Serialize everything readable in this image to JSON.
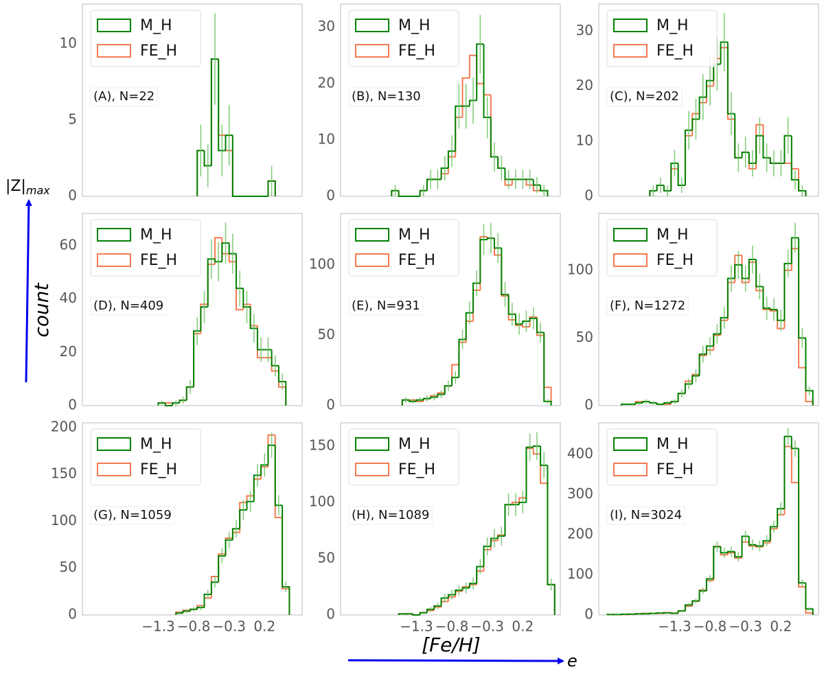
{
  "xlabel": "[Fe/H]",
  "ylabel": "count",
  "arrows": {
    "vertical_label": "|Z|",
    "vertical_subscript": "max",
    "horizontal_label": "e",
    "color": "#0000ee"
  },
  "chart_data": [
    {
      "type": "histogram",
      "annotation": "(A), N=22",
      "xlim": [
        -2.37,
        0.73
      ],
      "ylim": [
        0,
        12.6
      ],
      "yticks": [
        0,
        5,
        10
      ],
      "bins": [
        -0.75,
        -0.65,
        -0.55,
        -0.45,
        -0.35,
        -0.25,
        -0.15,
        -0.05,
        0.05,
        0.15,
        0.25,
        0.35
      ],
      "series": [
        {
          "name": "M_H",
          "color": "#008000",
          "error_color": "#6abf5e",
          "values": [
            3,
            2,
            9,
            3,
            4,
            0,
            0,
            0,
            0,
            0,
            1
          ],
          "errors": [
            1.7,
            1.4,
            3,
            1.7,
            2,
            0,
            0,
            0,
            0,
            0,
            1
          ]
        },
        {
          "name": "FE_H",
          "color": "#f47a50",
          "values": [
            3,
            2,
            9,
            4,
            3,
            0,
            0,
            0,
            0,
            0,
            1
          ]
        }
      ]
    },
    {
      "type": "histogram",
      "annotation": "(B), N=130",
      "xlim": [
        -2.37,
        0.73
      ],
      "ylim": [
        0,
        34.1
      ],
      "yticks": [
        0,
        10,
        20,
        30
      ],
      "bins": [
        -1.65,
        -1.55,
        -1.45,
        -1.35,
        -1.25,
        -1.15,
        -1.05,
        -0.95,
        -0.85,
        -0.75,
        -0.65,
        -0.55,
        -0.45,
        -0.35,
        -0.25,
        -0.15,
        -0.05,
        0.05,
        0.15,
        0.25,
        0.35,
        0.45,
        0.55
      ],
      "series": [
        {
          "name": "M_H",
          "color": "#008000",
          "error_color": "#6abf5e",
          "values": [
            1,
            0,
            0,
            0,
            1,
            3,
            3,
            5,
            8,
            16,
            16,
            17,
            27,
            14,
            7,
            5,
            3,
            3,
            3,
            3,
            2,
            1
          ],
          "errors": [
            1,
            0,
            0,
            0,
            1,
            1.7,
            1.7,
            2.2,
            2.8,
            4,
            4,
            4.1,
            5.2,
            3.7,
            2.6,
            2.2,
            1.7,
            1.7,
            1.7,
            1.7,
            1.4,
            1
          ]
        },
        {
          "name": "FE_H",
          "color": "#f47a50",
          "values": [
            1,
            0,
            0,
            0,
            1,
            3,
            3,
            4,
            7,
            14,
            21,
            25,
            20,
            18,
            7,
            5,
            2,
            3,
            3,
            2,
            1,
            1
          ]
        }
      ]
    },
    {
      "type": "histogram",
      "annotation": "(C), N=202",
      "xlim": [
        -2.37,
        0.73
      ],
      "ylim": [
        0,
        34.9
      ],
      "yticks": [
        0,
        10,
        20,
        30
      ],
      "bins": [
        -1.65,
        -1.55,
        -1.45,
        -1.35,
        -1.25,
        -1.15,
        -1.05,
        -0.95,
        -0.85,
        -0.75,
        -0.65,
        -0.55,
        -0.45,
        -0.35,
        -0.25,
        -0.15,
        -0.05,
        0.05,
        0.15,
        0.25,
        0.35,
        0.45,
        0.55
      ],
      "series": [
        {
          "name": "M_H",
          "color": "#008000",
          "error_color": "#6abf5e",
          "values": [
            1,
            2,
            1,
            6,
            2,
            12,
            14,
            18,
            21,
            24,
            28,
            15,
            7,
            8,
            6,
            11,
            7,
            6,
            6,
            11,
            3,
            1
          ],
          "errors": [
            1,
            1.4,
            1,
            2.4,
            1.4,
            3.5,
            3.7,
            4.2,
            4.6,
            4.9,
            5.3,
            3.9,
            2.6,
            2.8,
            2.4,
            3.3,
            2.6,
            2.4,
            2.4,
            3.3,
            1.7,
            1
          ]
        },
        {
          "name": "FE_H",
          "color": "#f47a50",
          "values": [
            1,
            2,
            1,
            5,
            2,
            11,
            15,
            17,
            20,
            25,
            27,
            14,
            7,
            8,
            5,
            13,
            7,
            6,
            6,
            6,
            5,
            1
          ]
        }
      ]
    },
    {
      "type": "histogram",
      "annotation": "(D), N=409",
      "xlim": [
        -2.37,
        0.73
      ],
      "ylim": [
        0,
        72.1
      ],
      "yticks": [
        0,
        20,
        40,
        60
      ],
      "bins": [
        -1.3,
        -1.2,
        -1.1,
        -1.0,
        -0.9,
        -0.8,
        -0.7,
        -0.6,
        -0.5,
        -0.4,
        -0.3,
        -0.2,
        -0.1,
        0.0,
        0.1,
        0.2,
        0.3,
        0.4,
        0.5
      ],
      "series": [
        {
          "name": "M_H",
          "color": "#008000",
          "error_color": "#6abf5e",
          "values": [
            1,
            0,
            1,
            2,
            7,
            28,
            37,
            55,
            54,
            61,
            57,
            44,
            37,
            29,
            21,
            21,
            15,
            9
          ],
          "errors": [
            1,
            0,
            1,
            1.4,
            2.6,
            5.3,
            6.1,
            7.4,
            7.3,
            7.8,
            7.5,
            6.6,
            6.1,
            5.4,
            4.6,
            4.6,
            3.9,
            3
          ]
        },
        {
          "name": "FE_H",
          "color": "#f47a50",
          "values": [
            1,
            1,
            1,
            2,
            7,
            27,
            38,
            53,
            63,
            57,
            54,
            36,
            38,
            30,
            18,
            18,
            13,
            7
          ]
        }
      ]
    },
    {
      "type": "histogram",
      "annotation": "(E), N=931",
      "xlim": [
        -2.37,
        0.73
      ],
      "ylim": [
        0,
        136.6
      ],
      "yticks": [
        0,
        50,
        100
      ],
      "bins": [
        -1.5,
        -1.4,
        -1.3,
        -1.2,
        -1.1,
        -1.0,
        -0.9,
        -0.8,
        -0.7,
        -0.6,
        -0.5,
        -0.4,
        -0.3,
        -0.2,
        -0.1,
        0.0,
        0.1,
        0.2,
        0.3,
        0.4,
        0.5,
        0.6
      ],
      "series": [
        {
          "name": "M_H",
          "color": "#008000",
          "error_color": "#6abf5e",
          "values": [
            4,
            3,
            4,
            5,
            6,
            8,
            14,
            20,
            47,
            66,
            87,
            118,
            119,
            112,
            79,
            65,
            58,
            60,
            62,
            52,
            3
          ],
          "errors": [
            2,
            1.7,
            2,
            2.2,
            2.4,
            2.8,
            3.7,
            4.5,
            6.9,
            8.1,
            9.3,
            10.9,
            10.9,
            10.6,
            8.9,
            8.1,
            7.6,
            7.7,
            7.9,
            7.2,
            1.7
          ]
        },
        {
          "name": "FE_H",
          "color": "#f47a50",
          "values": [
            4,
            4,
            3,
            5,
            7,
            9,
            14,
            29,
            45,
            60,
            82,
            120,
            119,
            107,
            78,
            61,
            57,
            56,
            63,
            50,
            13
          ]
        }
      ]
    },
    {
      "type": "histogram",
      "annotation": "(F), N=1272",
      "xlim": [
        -2.37,
        0.73
      ],
      "ylim": [
        0,
        142
      ],
      "yticks": [
        0,
        50,
        100
      ],
      "bins": [
        -2.05,
        -1.95,
        -1.85,
        -1.75,
        -1.65,
        -1.55,
        -1.45,
        -1.35,
        -1.25,
        -1.15,
        -1.05,
        -0.95,
        -0.85,
        -0.75,
        -0.65,
        -0.55,
        -0.45,
        -0.35,
        -0.25,
        -0.15,
        -0.05,
        0.05,
        0.15,
        0.25,
        0.35,
        0.45,
        0.55,
        0.65
      ],
      "series": [
        {
          "name": "M_H",
          "color": "#008000",
          "error_color": "#6abf5e",
          "values": [
            1,
            1,
            2,
            3,
            2,
            1,
            2,
            3,
            9,
            16,
            22,
            38,
            44,
            53,
            65,
            94,
            104,
            94,
            108,
            88,
            72,
            71,
            63,
            105,
            124,
            50,
            11
          ],
          "errors": [
            1,
            1,
            1.4,
            1.7,
            1.4,
            1,
            1.4,
            1.7,
            3,
            4,
            4.7,
            6.2,
            6.6,
            7.3,
            8.1,
            9.7,
            10.2,
            9.7,
            10.4,
            9.4,
            8.5,
            8.4,
            7.9,
            10.2,
            11.1,
            7.1,
            3.3
          ]
        },
        {
          "name": "FE_H",
          "color": "#f47a50",
          "values": [
            1,
            1,
            3,
            3,
            2,
            1,
            1,
            3,
            9,
            18,
            23,
            37,
            41,
            52,
            63,
            91,
            111,
            91,
            106,
            85,
            71,
            70,
            57,
            100,
            116,
            28,
            3
          ]
        }
      ]
    },
    {
      "type": "histogram",
      "annotation": "(G), N=1059",
      "xlim": [
        -2.37,
        0.73
      ],
      "ylim": [
        0,
        205
      ],
      "yticks": [
        0,
        50,
        100,
        150,
        200
      ],
      "xticks": [
        {
          "value": -1.3,
          "label": "−1.3"
        },
        {
          "value": -0.8,
          "label": "−0.8"
        },
        {
          "value": -0.3,
          "label": "−0.3"
        },
        0.2
      ],
      "bins": [
        -1.05,
        -0.95,
        -0.85,
        -0.75,
        -0.65,
        -0.55,
        -0.45,
        -0.35,
        -0.25,
        -0.15,
        -0.05,
        0.05,
        0.15,
        0.25,
        0.35,
        0.45,
        0.55
      ],
      "series": [
        {
          "name": "M_H",
          "color": "#008000",
          "error_color": "#6abf5e",
          "values": [
            2,
            4,
            6,
            8,
            22,
            35,
            63,
            80,
            92,
            112,
            121,
            149,
            160,
            181,
            117,
            30
          ],
          "errors": [
            1.4,
            2,
            2.4,
            2.8,
            4.7,
            5.9,
            7.9,
            8.9,
            9.6,
            10.6,
            11,
            12.2,
            12.6,
            13.5,
            10.8,
            5.5
          ]
        },
        {
          "name": "FE_H",
          "color": "#f47a50",
          "values": [
            3,
            5,
            6,
            10,
            18,
            41,
            65,
            82,
            88,
            120,
            127,
            145,
            158,
            192,
            104,
            28
          ]
        }
      ]
    },
    {
      "type": "histogram",
      "annotation": "(H), N=1089",
      "xlim": [
        -2.37,
        0.73
      ],
      "ylim": [
        0,
        170.7
      ],
      "yticks": [
        0,
        50,
        100,
        150
      ],
      "xticks": [
        {
          "value": -1.3,
          "label": "−1.3"
        },
        {
          "value": -0.8,
          "label": "−0.8"
        },
        {
          "value": -0.3,
          "label": "−0.3"
        },
        0.2
      ],
      "bins": [
        -1.55,
        -1.45,
        -1.35,
        -1.25,
        -1.15,
        -1.05,
        -0.95,
        -0.85,
        -0.75,
        -0.65,
        -0.55,
        -0.45,
        -0.35,
        -0.25,
        -0.15,
        -0.05,
        0.05,
        0.15,
        0.25,
        0.35,
        0.45,
        0.55,
        0.65
      ],
      "series": [
        {
          "name": "M_H",
          "color": "#008000",
          "error_color": "#6abf5e",
          "values": [
            1,
            1,
            0,
            2,
            5,
            8,
            15,
            18,
            22,
            24,
            28,
            43,
            61,
            68,
            70,
            98,
            98,
            100,
            149,
            150,
            133,
            27
          ],
          "errors": [
            1,
            1,
            0,
            1.4,
            2.2,
            2.8,
            3.9,
            4.2,
            4.7,
            4.9,
            5.3,
            6.6,
            7.8,
            8.2,
            8.4,
            9.9,
            9.9,
            10,
            12.2,
            12.2,
            11.5,
            5.2
          ]
        },
        {
          "name": "FE_H",
          "color": "#f47a50",
          "values": [
            1,
            1,
            0,
            2,
            4,
            7,
            12,
            16,
            21,
            25,
            27,
            39,
            58,
            66,
            71,
            98,
            100,
            104,
            148,
            143,
            117,
            27
          ]
        }
      ]
    },
    {
      "type": "histogram",
      "annotation": "(I), N=3024",
      "xlim": [
        -2.37,
        0.73
      ],
      "ylim": [
        0,
        479
      ],
      "yticks": [
        0,
        100,
        200,
        300,
        400
      ],
      "xticks": [
        {
          "value": -1.3,
          "label": "−1.3"
        },
        {
          "value": -0.8,
          "label": "−0.8"
        },
        {
          "value": -0.3,
          "label": "−0.3"
        },
        0.2
      ],
      "bins": [
        -2.25,
        -2.15,
        -2.05,
        -1.95,
        -1.85,
        -1.75,
        -1.65,
        -1.55,
        -1.45,
        -1.35,
        -1.25,
        -1.15,
        -1.05,
        -0.95,
        -0.85,
        -0.75,
        -0.65,
        -0.55,
        -0.45,
        -0.35,
        -0.25,
        -0.15,
        -0.05,
        0.05,
        0.15,
        0.25,
        0.35,
        0.45,
        0.55,
        0.65
      ],
      "series": [
        {
          "name": "M_H",
          "color": "#008000",
          "error_color": "#6abf5e",
          "values": [
            1,
            1,
            2,
            2,
            3,
            3,
            4,
            5,
            5,
            4,
            10,
            25,
            35,
            60,
            90,
            170,
            155,
            158,
            145,
            196,
            175,
            172,
            185,
            220,
            265,
            445,
            415,
            80,
            15
          ],
          "errors": [
            1,
            1,
            1.4,
            1.4,
            1.7,
            1.7,
            2,
            2.2,
            2.2,
            2,
            3.2,
            5,
            5.9,
            7.7,
            9.5,
            13,
            12.4,
            12.6,
            12,
            14,
            13.2,
            13.1,
            13.6,
            14.8,
            16.3,
            21.1,
            20.4,
            8.9,
            3.9
          ]
        },
        {
          "name": "FE_H",
          "color": "#f47a50",
          "values": [
            1,
            1,
            1,
            2,
            3,
            4,
            4,
            4,
            6,
            5,
            10,
            22,
            34,
            62,
            86,
            171,
            150,
            155,
            142,
            182,
            172,
            170,
            180,
            215,
            250,
            420,
            330,
            70,
            5
          ]
        }
      ]
    }
  ]
}
